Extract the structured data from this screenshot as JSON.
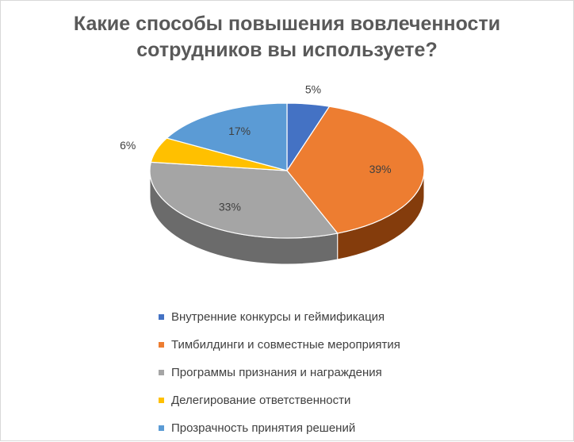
{
  "chart_data": {
    "type": "pie",
    "title_lines": [
      "Какие способы повышения вовлеченности",
      "сотрудников вы используете?"
    ],
    "slices": [
      {
        "label": "Внутренние конкурсы и геймификация",
        "value": 5,
        "display": "5%",
        "color": "#4472c4",
        "side": "#2f528f"
      },
      {
        "label": "Тимбилдинги и совместные мероприятия",
        "value": 39,
        "display": "39%",
        "color": "#ed7d31",
        "side": "#843c0c"
      },
      {
        "label": "Программы признания и награждения",
        "value": 33,
        "display": "33%",
        "color": "#a5a5a5",
        "side": "#6b6b6b"
      },
      {
        "label": "Делегирование ответственности",
        "value": 6,
        "display": "6%",
        "color": "#ffc000",
        "side": "#bf9000"
      },
      {
        "label": "Прозрачность принятия решений",
        "value": 17,
        "display": "17%",
        "color": "#5b9bd5",
        "side": "#2e75b6"
      }
    ],
    "legend_position": "bottom",
    "style": "3d"
  }
}
